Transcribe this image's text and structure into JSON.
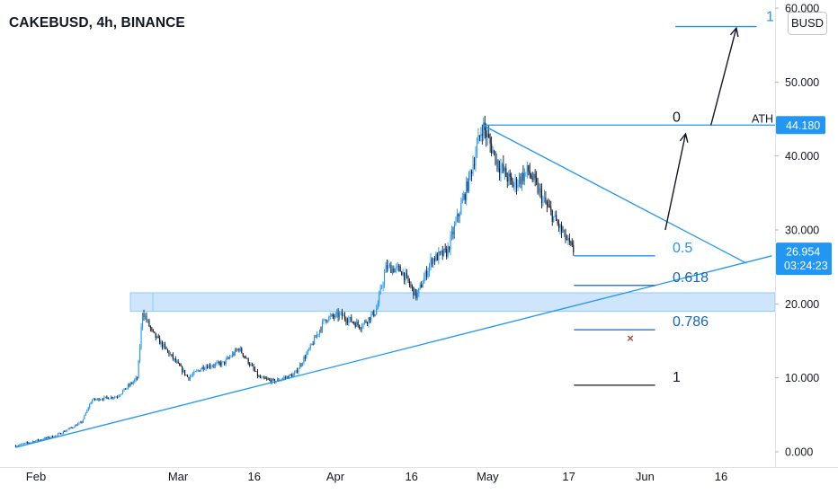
{
  "header": {
    "symbol_title": "CAKEBUSD, 4h, BINANCE"
  },
  "currency_badge": "BUSD",
  "colors": {
    "up": "#2196f3",
    "down": "#131722",
    "drawing": "#2196f3",
    "fib_blue": "#2196f3",
    "fib_dark_blue": "#1565c0",
    "fib_black": "#131722",
    "zone_fill": "#cfe5fb",
    "zone_stroke": "#90caf9",
    "axis_text": "#131722",
    "cross_marker": "#a0523d"
  },
  "chart_data": {
    "type": "candlestick",
    "title": "CAKEBUSD, 4h, BINANCE",
    "x_ticks": [
      "Feb",
      "Mar",
      "16",
      "Apr",
      "16",
      "May",
      "17",
      "Jun",
      "16"
    ],
    "y_ticks": [
      "60.000",
      "50.000",
      "40.000",
      "30.000",
      "20.000",
      "10.000",
      "0.000"
    ],
    "ylim": [
      0,
      60
    ],
    "price_path": [
      [
        "2021-01-28",
        0.8
      ],
      [
        "2021-02-05",
        2.2
      ],
      [
        "2021-02-10",
        4.0
      ],
      [
        "2021-02-12",
        7.0
      ],
      [
        "2021-02-17",
        7.5
      ],
      [
        "2021-02-21",
        10.0
      ],
      [
        "2021-02-22",
        19.0
      ],
      [
        "2021-02-24",
        16.0
      ],
      [
        "2021-02-27",
        13.5
      ],
      [
        "2021-03-03",
        10.0
      ],
      [
        "2021-03-06",
        11.5
      ],
      [
        "2021-03-10",
        12.0
      ],
      [
        "2021-03-13",
        14.0
      ],
      [
        "2021-03-17",
        10.0
      ],
      [
        "2021-03-20",
        9.5
      ],
      [
        "2021-03-24",
        10.5
      ],
      [
        "2021-03-27",
        14.0
      ],
      [
        "2021-03-30",
        18.0
      ],
      [
        "2021-04-02",
        18.5
      ],
      [
        "2021-04-06",
        17.0
      ],
      [
        "2021-04-09",
        19.0
      ],
      [
        "2021-04-11",
        25.0
      ],
      [
        "2021-04-14",
        24.5
      ],
      [
        "2021-04-17",
        21.0
      ],
      [
        "2021-04-20",
        26.0
      ],
      [
        "2021-04-23",
        27.0
      ],
      [
        "2021-04-27",
        36.0
      ],
      [
        "2021-04-30",
        44.18
      ],
      [
        "2021-05-03",
        39.0
      ],
      [
        "2021-05-06",
        36.0
      ],
      [
        "2021-05-09",
        38.0
      ],
      [
        "2021-05-12",
        34.0
      ],
      [
        "2021-05-15",
        30.5
      ],
      [
        "2021-05-18",
        26.954
      ]
    ],
    "current_price": "26.954",
    "countdown": "03:24:23",
    "ath_label": "ATH",
    "ath_price": "44.180",
    "fib_levels": [
      {
        "label": "1",
        "price": 57.5
      },
      {
        "label": "0",
        "price": 44.18
      },
      {
        "label": "0.5",
        "price": 26.5
      },
      {
        "label": "0.618",
        "price": 22.5
      },
      {
        "label": "0.786",
        "price": 16.5
      },
      {
        "label": "1",
        "price": 9.0
      }
    ],
    "support_zone": [
      19.0,
      21.5
    ],
    "rising_trendline": [
      [
        "2021-01-28",
        0.6
      ],
      [
        "2021-06-26",
        26.5
      ]
    ],
    "falling_trendline": [
      [
        "2021-04-30",
        44.18
      ],
      [
        "2021-06-21",
        25.5
      ]
    ],
    "projection_arrows": [
      [
        [
          "2021-06-05",
          30.0
        ],
        [
          "2021-06-09",
          43.0
        ]
      ],
      [
        [
          "2021-06-14",
          44.18
        ],
        [
          "2021-06-19",
          57.3
        ]
      ]
    ]
  }
}
